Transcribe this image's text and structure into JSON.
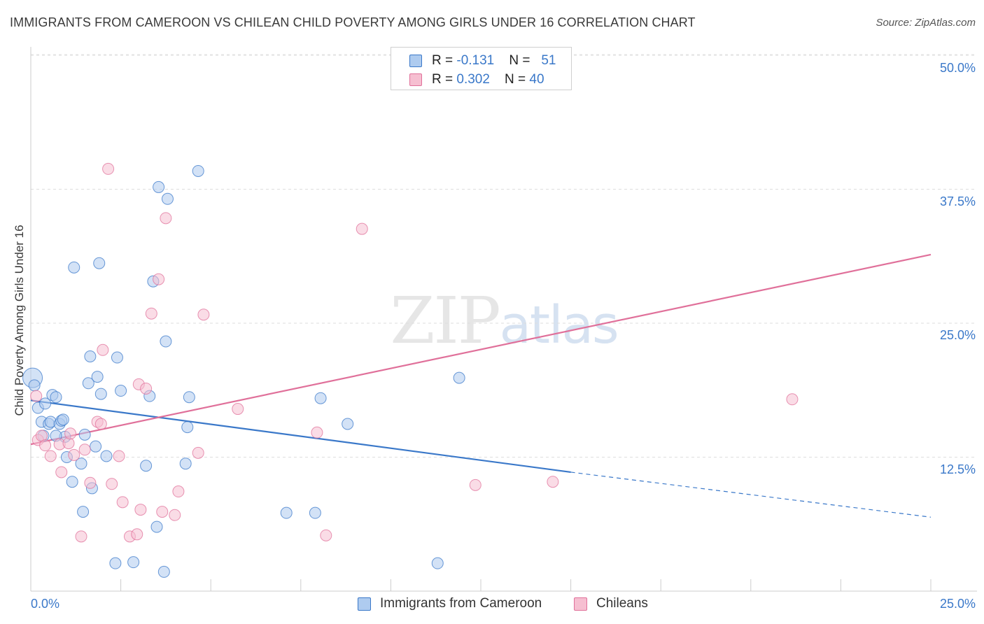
{
  "title": "IMMIGRANTS FROM CAMEROON VS CHILEAN CHILD POVERTY AMONG GIRLS UNDER 16 CORRELATION CHART",
  "source": "Source: ZipAtlas.com",
  "watermark": "ZIPatlas",
  "legend_top": {
    "rows": [
      {
        "r_label": "R = ",
        "r_value": "-0.131",
        "n_label": "N = ",
        "n_value": "51"
      },
      {
        "r_label": "R = ",
        "r_value": "0.302",
        "n_label": "N = ",
        "n_value": "40"
      }
    ]
  },
  "chart_data": {
    "type": "scatter",
    "title": "IMMIGRANTS FROM CAMEROON VS CHILEAN CHILD POVERTY AMONG GIRLS UNDER 16 CORRELATION CHART",
    "xlabel": "",
    "ylabel": "Child Poverty Among Girls Under 16",
    "xlim": [
      0,
      25
    ],
    "ylim": [
      0,
      50
    ],
    "x_tick_labels": [
      "0.0%",
      "25.0%"
    ],
    "y_tick_labels": [
      "12.5%",
      "25.0%",
      "37.5%",
      "50.0%"
    ],
    "y_tick_values": [
      12.5,
      25,
      37.5,
      50
    ],
    "grid": true,
    "legend_position": "bottom-center",
    "colors": {
      "cameroon": "#3a78c9",
      "chileans": "#e0709a"
    },
    "series": [
      {
        "name": "Immigrants from Cameroon",
        "color": "#3a78c9",
        "fill": "#aecbef",
        "trend": {
          "x0": 0,
          "y0": 17.8,
          "x1": 15,
          "y1": 11.1,
          "dashed_to_x": 25,
          "dashed_to_y": 6.9
        },
        "points": [
          [
            0.05,
            19.9
          ],
          [
            0.1,
            19.2
          ],
          [
            0.2,
            17.1
          ],
          [
            0.3,
            15.8
          ],
          [
            0.35,
            14.5
          ],
          [
            0.4,
            17.5
          ],
          [
            0.5,
            15.6
          ],
          [
            0.55,
            15.8
          ],
          [
            0.6,
            18.3
          ],
          [
            0.7,
            18.1
          ],
          [
            0.8,
            15.6
          ],
          [
            0.85,
            15.9
          ],
          [
            0.9,
            16.0
          ],
          [
            0.95,
            14.4
          ],
          [
            1.0,
            12.5
          ],
          [
            1.15,
            10.2
          ],
          [
            1.2,
            30.2
          ],
          [
            1.45,
            7.4
          ],
          [
            1.4,
            11.9
          ],
          [
            1.5,
            14.6
          ],
          [
            1.6,
            19.4
          ],
          [
            1.65,
            21.9
          ],
          [
            1.7,
            9.6
          ],
          [
            1.8,
            13.5
          ],
          [
            1.85,
            20.0
          ],
          [
            1.9,
            30.6
          ],
          [
            1.95,
            18.4
          ],
          [
            2.1,
            12.6
          ],
          [
            2.35,
            2.6
          ],
          [
            2.4,
            21.8
          ],
          [
            2.5,
            18.7
          ],
          [
            2.85,
            2.7
          ],
          [
            3.2,
            11.7
          ],
          [
            3.3,
            18.2
          ],
          [
            3.4,
            28.9
          ],
          [
            3.5,
            6.0
          ],
          [
            3.55,
            37.7
          ],
          [
            3.7,
            1.8
          ],
          [
            3.75,
            23.3
          ],
          [
            3.8,
            36.6
          ],
          [
            4.3,
            11.9
          ],
          [
            4.4,
            18.1
          ],
          [
            4.35,
            15.3
          ],
          [
            4.65,
            39.2
          ],
          [
            7.1,
            7.3
          ],
          [
            7.9,
            7.3
          ],
          [
            8.8,
            15.6
          ],
          [
            8.05,
            18.0
          ],
          [
            11.9,
            19.9
          ],
          [
            11.3,
            2.6
          ],
          [
            0.7,
            14.5
          ]
        ]
      },
      {
        "name": "Chileans",
        "color": "#e0709a",
        "fill": "#f6bfd1",
        "trend": {
          "x0": 0,
          "y0": 13.7,
          "x1": 25,
          "y1": 31.4
        },
        "points": [
          [
            0.15,
            18.2
          ],
          [
            0.2,
            14.1
          ],
          [
            0.3,
            14.5
          ],
          [
            0.4,
            13.6
          ],
          [
            0.55,
            12.6
          ],
          [
            0.8,
            13.7
          ],
          [
            0.85,
            11.1
          ],
          [
            1.05,
            13.8
          ],
          [
            1.1,
            14.7
          ],
          [
            1.2,
            12.7
          ],
          [
            1.4,
            5.1
          ],
          [
            1.5,
            13.2
          ],
          [
            1.65,
            10.1
          ],
          [
            1.85,
            15.8
          ],
          [
            1.95,
            15.6
          ],
          [
            2.0,
            22.5
          ],
          [
            2.15,
            39.4
          ],
          [
            2.25,
            10.0
          ],
          [
            2.45,
            12.6
          ],
          [
            2.55,
            8.3
          ],
          [
            2.75,
            5.1
          ],
          [
            2.95,
            5.3
          ],
          [
            3.0,
            19.3
          ],
          [
            3.05,
            7.6
          ],
          [
            3.2,
            18.9
          ],
          [
            3.35,
            25.9
          ],
          [
            3.55,
            29.1
          ],
          [
            3.65,
            7.4
          ],
          [
            3.75,
            34.8
          ],
          [
            4.0,
            7.1
          ],
          [
            4.1,
            9.3
          ],
          [
            4.65,
            12.9
          ],
          [
            4.8,
            25.8
          ],
          [
            5.75,
            17.0
          ],
          [
            8.2,
            5.2
          ],
          [
            7.95,
            14.8
          ],
          [
            9.2,
            33.8
          ],
          [
            12.35,
            9.9
          ],
          [
            14.5,
            10.2
          ],
          [
            21.15,
            17.9
          ]
        ]
      }
    ]
  },
  "legend_bottom": {
    "items": [
      {
        "label": "Immigrants from Cameroon"
      },
      {
        "label": "Chileans"
      }
    ]
  }
}
